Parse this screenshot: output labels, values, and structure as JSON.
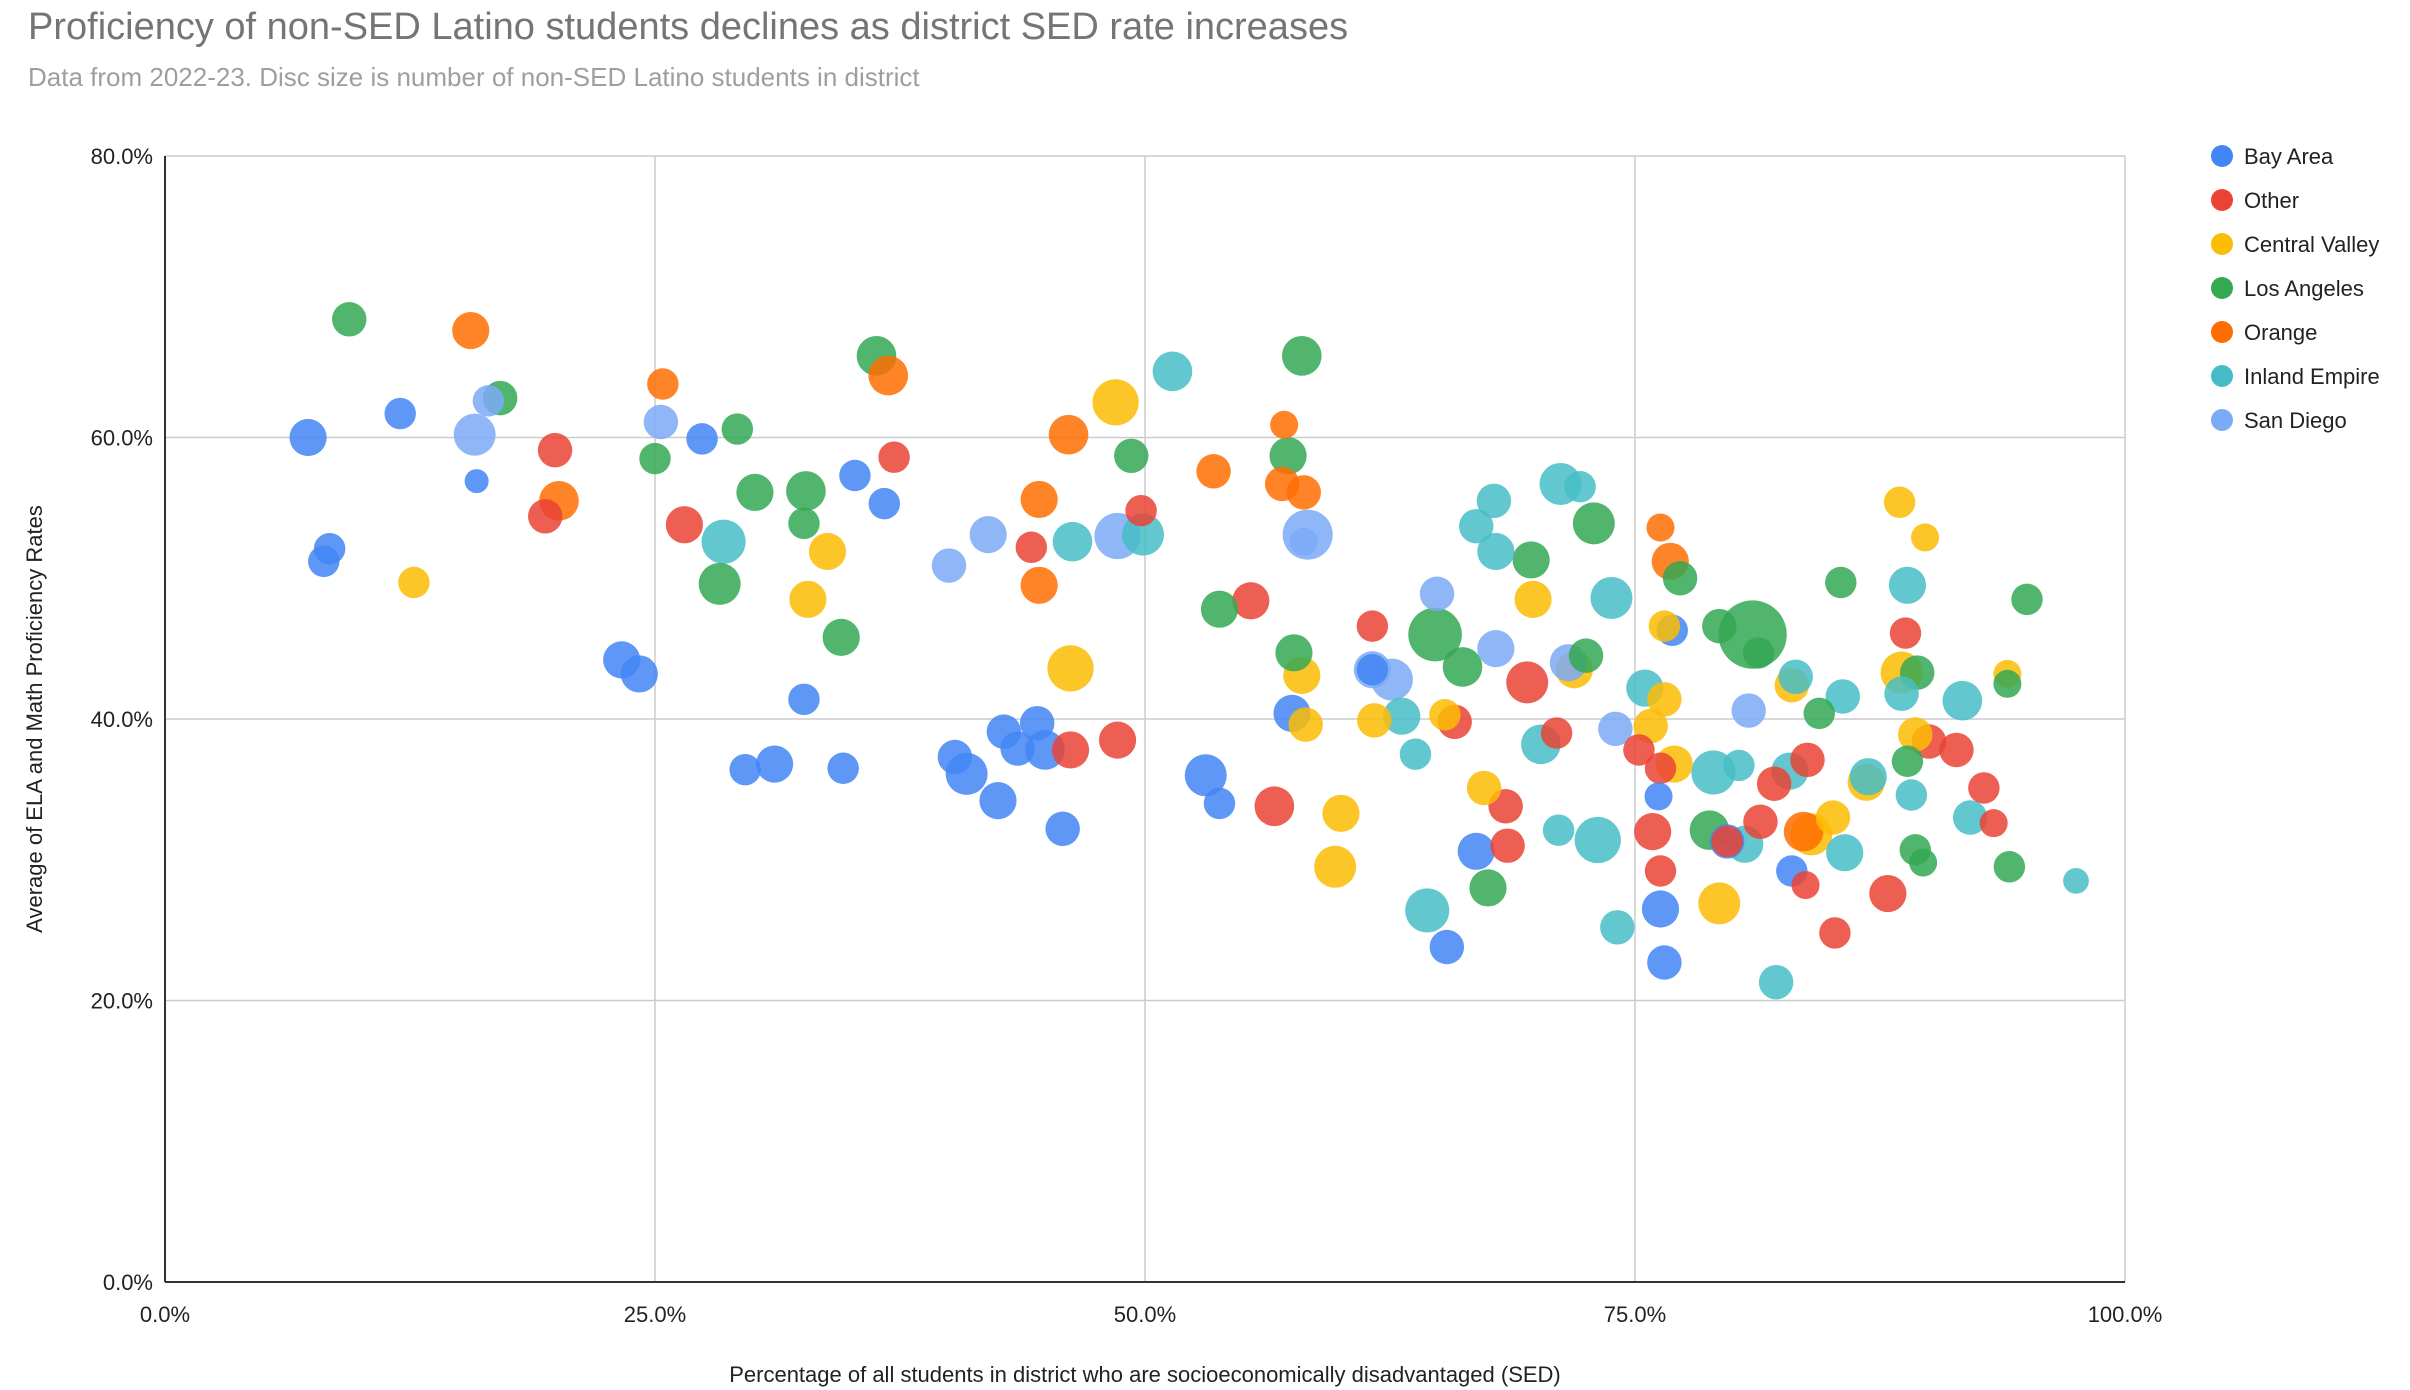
{
  "chart_data": {
    "type": "scatter",
    "title": "Proficiency of non-SED Latino students declines as district SED rate increases",
    "subtitle": "Data from 2022-23. Disc size is number of non-SED Latino students in district",
    "xlabel": "Percentage of all students in district who are socioeconomically disadvantaged (SED)",
    "ylabel": "Average of ELA and Math Proficiency Rates",
    "xlim": [
      0,
      100
    ],
    "ylim": [
      0,
      80
    ],
    "x_ticks": [
      "0.0%",
      "25.0%",
      "50.0%",
      "75.0%",
      "100.0%"
    ],
    "y_ticks": [
      "0.0%",
      "20.0%",
      "40.0%",
      "60.0%",
      "80.0%"
    ],
    "grid": true,
    "legend_position": "right",
    "size_encoding": "number of non-SED Latino students in district (relative)",
    "series": [
      {
        "name": "Bay Area",
        "color": "#4285F4",
        "points": [
          {
            "x": 7.3,
            "y": 60.0,
            "s": 3
          },
          {
            "x": 12.0,
            "y": 61.7,
            "s": 2
          },
          {
            "x": 8.4,
            "y": 52.1,
            "s": 2
          },
          {
            "x": 8.1,
            "y": 51.2,
            "s": 2
          },
          {
            "x": 15.9,
            "y": 56.9,
            "s": 1
          },
          {
            "x": 27.4,
            "y": 59.9,
            "s": 2
          },
          {
            "x": 35.2,
            "y": 57.3,
            "s": 2
          },
          {
            "x": 36.7,
            "y": 55.3,
            "s": 2
          },
          {
            "x": 23.3,
            "y": 44.2,
            "s": 3
          },
          {
            "x": 24.2,
            "y": 43.2,
            "s": 3
          },
          {
            "x": 32.6,
            "y": 41.4,
            "s": 2
          },
          {
            "x": 29.6,
            "y": 36.4,
            "s": 2
          },
          {
            "x": 31.1,
            "y": 36.8,
            "s": 3
          },
          {
            "x": 34.6,
            "y": 36.5,
            "s": 2
          },
          {
            "x": 40.3,
            "y": 37.3,
            "s": 2.5
          },
          {
            "x": 40.9,
            "y": 36.1,
            "s": 4
          },
          {
            "x": 42.5,
            "y": 34.2,
            "s": 3
          },
          {
            "x": 42.8,
            "y": 39.1,
            "s": 2.5
          },
          {
            "x": 43.5,
            "y": 37.9,
            "s": 2.5
          },
          {
            "x": 44.5,
            "y": 39.7,
            "s": 2.5
          },
          {
            "x": 44.9,
            "y": 37.8,
            "s": 3.5
          },
          {
            "x": 45.8,
            "y": 32.2,
            "s": 2.5
          },
          {
            "x": 53.1,
            "y": 36.0,
            "s": 4
          },
          {
            "x": 53.8,
            "y": 34.0,
            "s": 2
          },
          {
            "x": 57.5,
            "y": 40.4,
            "s": 3
          },
          {
            "x": 61.6,
            "y": 43.5,
            "s": 2
          },
          {
            "x": 65.4,
            "y": 23.8,
            "s": 2.5
          },
          {
            "x": 66.9,
            "y": 30.6,
            "s": 3
          },
          {
            "x": 76.2,
            "y": 34.5,
            "s": 1.5
          },
          {
            "x": 76.3,
            "y": 26.5,
            "s": 3
          },
          {
            "x": 76.5,
            "y": 22.7,
            "s": 2.5
          },
          {
            "x": 79.7,
            "y": 31.3,
            "s": 2.5
          },
          {
            "x": 83.0,
            "y": 29.2,
            "s": 2
          },
          {
            "x": 76.9,
            "y": 46.3,
            "s": 2
          }
        ]
      },
      {
        "name": "Other",
        "color": "#EA4335",
        "points": [
          {
            "x": 19.9,
            "y": 59.1,
            "s": 2.5
          },
          {
            "x": 19.4,
            "y": 54.4,
            "s": 2.5
          },
          {
            "x": 26.5,
            "y": 53.8,
            "s": 3
          },
          {
            "x": 37.2,
            "y": 58.6,
            "s": 2
          },
          {
            "x": 44.2,
            "y": 52.2,
            "s": 2
          },
          {
            "x": 46.2,
            "y": 37.8,
            "s": 3
          },
          {
            "x": 48.6,
            "y": 38.5,
            "s": 3
          },
          {
            "x": 49.8,
            "y": 54.8,
            "s": 2
          },
          {
            "x": 55.4,
            "y": 48.4,
            "s": 3
          },
          {
            "x": 56.6,
            "y": 33.8,
            "s": 3.5
          },
          {
            "x": 61.6,
            "y": 46.6,
            "s": 2
          },
          {
            "x": 65.8,
            "y": 39.8,
            "s": 2.5
          },
          {
            "x": 68.4,
            "y": 33.8,
            "s": 2.5
          },
          {
            "x": 68.5,
            "y": 31.0,
            "s": 2.5
          },
          {
            "x": 69.5,
            "y": 42.6,
            "s": 4
          },
          {
            "x": 71.0,
            "y": 39.0,
            "s": 2
          },
          {
            "x": 75.2,
            "y": 37.8,
            "s": 2
          },
          {
            "x": 75.9,
            "y": 32.0,
            "s": 3
          },
          {
            "x": 76.3,
            "y": 36.5,
            "s": 2
          },
          {
            "x": 76.3,
            "y": 29.2,
            "s": 2
          },
          {
            "x": 79.7,
            "y": 31.3,
            "s": 2
          },
          {
            "x": 81.4,
            "y": 32.7,
            "s": 2.5
          },
          {
            "x": 82.1,
            "y": 35.4,
            "s": 2.5
          },
          {
            "x": 83.7,
            "y": 28.2,
            "s": 1.5
          },
          {
            "x": 83.8,
            "y": 37.1,
            "s": 2.5
          },
          {
            "x": 85.2,
            "y": 24.8,
            "s": 2
          },
          {
            "x": 87.9,
            "y": 27.6,
            "s": 3
          },
          {
            "x": 88.8,
            "y": 46.1,
            "s": 2
          },
          {
            "x": 90.0,
            "y": 38.4,
            "s": 2.5
          },
          {
            "x": 91.4,
            "y": 37.8,
            "s": 2.5
          },
          {
            "x": 92.8,
            "y": 35.1,
            "s": 2
          },
          {
            "x": 93.3,
            "y": 32.6,
            "s": 1.5
          }
        ]
      },
      {
        "name": "Central Valley",
        "color": "#FBBC04",
        "points": [
          {
            "x": 12.7,
            "y": 49.7,
            "s": 2
          },
          {
            "x": 32.8,
            "y": 48.5,
            "s": 3
          },
          {
            "x": 33.8,
            "y": 51.9,
            "s": 3
          },
          {
            "x": 46.2,
            "y": 43.6,
            "s": 5
          },
          {
            "x": 48.5,
            "y": 62.5,
            "s": 5
          },
          {
            "x": 58.0,
            "y": 43.1,
            "s": 3
          },
          {
            "x": 58.2,
            "y": 39.6,
            "s": 2.5
          },
          {
            "x": 59.7,
            "y": 29.5,
            "s": 4
          },
          {
            "x": 60.0,
            "y": 33.3,
            "s": 3
          },
          {
            "x": 61.7,
            "y": 39.9,
            "s": 2.5
          },
          {
            "x": 65.3,
            "y": 40.3,
            "s": 2
          },
          {
            "x": 67.3,
            "y": 35.1,
            "s": 2.5
          },
          {
            "x": 69.8,
            "y": 48.5,
            "s": 3
          },
          {
            "x": 71.9,
            "y": 43.5,
            "s": 3
          },
          {
            "x": 75.8,
            "y": 39.5,
            "s": 2.5
          },
          {
            "x": 76.5,
            "y": 41.4,
            "s": 2.5
          },
          {
            "x": 77.0,
            "y": 36.8,
            "s": 3
          },
          {
            "x": 79.3,
            "y": 26.9,
            "s": 4
          },
          {
            "x": 83.0,
            "y": 42.4,
            "s": 2.5
          },
          {
            "x": 84.0,
            "y": 31.8,
            "s": 4
          },
          {
            "x": 85.1,
            "y": 33.0,
            "s": 2.5
          },
          {
            "x": 86.8,
            "y": 35.5,
            "s": 3
          },
          {
            "x": 88.5,
            "y": 55.4,
            "s": 2
          },
          {
            "x": 88.6,
            "y": 43.3,
            "s": 4
          },
          {
            "x": 89.3,
            "y": 38.9,
            "s": 2.5
          },
          {
            "x": 89.8,
            "y": 52.9,
            "s": 1.5
          },
          {
            "x": 94.0,
            "y": 43.2,
            "s": 1.5
          },
          {
            "x": 76.5,
            "y": 46.6,
            "s": 2
          }
        ]
      },
      {
        "name": "Los Angeles",
        "color": "#34A853",
        "points": [
          {
            "x": 9.4,
            "y": 68.4,
            "s": 2.5
          },
          {
            "x": 17.1,
            "y": 62.8,
            "s": 2.5
          },
          {
            "x": 25.0,
            "y": 58.5,
            "s": 2
          },
          {
            "x": 29.2,
            "y": 60.6,
            "s": 2
          },
          {
            "x": 28.3,
            "y": 49.6,
            "s": 4
          },
          {
            "x": 30.1,
            "y": 56.1,
            "s": 3
          },
          {
            "x": 32.7,
            "y": 56.2,
            "s": 3.5
          },
          {
            "x": 32.6,
            "y": 53.9,
            "s": 2
          },
          {
            "x": 34.5,
            "y": 45.8,
            "s": 3
          },
          {
            "x": 36.3,
            "y": 65.8,
            "s": 3.5
          },
          {
            "x": 49.3,
            "y": 58.7,
            "s": 2.5
          },
          {
            "x": 53.8,
            "y": 47.8,
            "s": 3
          },
          {
            "x": 57.3,
            "y": 58.7,
            "s": 3
          },
          {
            "x": 57.6,
            "y": 44.7,
            "s": 3
          },
          {
            "x": 58.0,
            "y": 65.8,
            "s": 3.5
          },
          {
            "x": 64.8,
            "y": 46.0,
            "s": 7
          },
          {
            "x": 66.2,
            "y": 43.7,
            "s": 3.5
          },
          {
            "x": 67.5,
            "y": 28.0,
            "s": 3
          },
          {
            "x": 69.7,
            "y": 51.3,
            "s": 3
          },
          {
            "x": 72.5,
            "y": 44.5,
            "s": 2.5
          },
          {
            "x": 72.9,
            "y": 53.9,
            "s": 4
          },
          {
            "x": 77.3,
            "y": 50.0,
            "s": 2.5
          },
          {
            "x": 78.8,
            "y": 32.1,
            "s": 3.5
          },
          {
            "x": 79.3,
            "y": 46.6,
            "s": 2.5
          },
          {
            "x": 81.0,
            "y": 46.0,
            "s": 12
          },
          {
            "x": 81.3,
            "y": 44.7,
            "s": 2
          },
          {
            "x": 84.4,
            "y": 40.4,
            "s": 2
          },
          {
            "x": 85.5,
            "y": 49.7,
            "s": 2
          },
          {
            "x": 88.9,
            "y": 37.0,
            "s": 2
          },
          {
            "x": 89.4,
            "y": 43.3,
            "s": 2.5
          },
          {
            "x": 89.3,
            "y": 30.7,
            "s": 2
          },
          {
            "x": 89.7,
            "y": 29.8,
            "s": 1.5
          },
          {
            "x": 94.0,
            "y": 42.5,
            "s": 1.5
          },
          {
            "x": 94.1,
            "y": 29.5,
            "s": 2
          },
          {
            "x": 95.0,
            "y": 48.5,
            "s": 2
          }
        ]
      },
      {
        "name": "Orange",
        "color": "#FF6D01",
        "points": [
          {
            "x": 15.6,
            "y": 67.6,
            "s": 3
          },
          {
            "x": 20.1,
            "y": 55.5,
            "s": 3.5
          },
          {
            "x": 25.4,
            "y": 63.8,
            "s": 2
          },
          {
            "x": 36.9,
            "y": 64.4,
            "s": 3.5
          },
          {
            "x": 44.6,
            "y": 55.6,
            "s": 3
          },
          {
            "x": 44.6,
            "y": 49.5,
            "s": 3
          },
          {
            "x": 46.1,
            "y": 60.2,
            "s": 3.5
          },
          {
            "x": 53.5,
            "y": 57.6,
            "s": 2.5
          },
          {
            "x": 57.1,
            "y": 60.9,
            "s": 1.5
          },
          {
            "x": 57.0,
            "y": 56.7,
            "s": 2.5
          },
          {
            "x": 58.1,
            "y": 56.1,
            "s": 2.5
          },
          {
            "x": 76.3,
            "y": 53.6,
            "s": 1.5
          },
          {
            "x": 76.8,
            "y": 51.2,
            "s": 3
          },
          {
            "x": 83.6,
            "y": 32.0,
            "s": 3.5
          }
        ]
      },
      {
        "name": "Inland Empire",
        "color": "#46BDC6",
        "points": [
          {
            "x": 28.5,
            "y": 52.6,
            "s": 4.5
          },
          {
            "x": 46.3,
            "y": 52.6,
            "s": 3.5
          },
          {
            "x": 49.9,
            "y": 53.1,
            "s": 4
          },
          {
            "x": 51.4,
            "y": 64.7,
            "s": 3.5
          },
          {
            "x": 63.1,
            "y": 40.2,
            "s": 3
          },
          {
            "x": 63.8,
            "y": 37.5,
            "s": 2
          },
          {
            "x": 64.4,
            "y": 26.4,
            "s": 4.5
          },
          {
            "x": 66.9,
            "y": 53.7,
            "s": 2.5
          },
          {
            "x": 67.8,
            "y": 55.5,
            "s": 2.5
          },
          {
            "x": 67.9,
            "y": 51.9,
            "s": 3
          },
          {
            "x": 70.2,
            "y": 38.2,
            "s": 3.5
          },
          {
            "x": 71.1,
            "y": 32.1,
            "s": 2
          },
          {
            "x": 71.2,
            "y": 56.7,
            "s": 4
          },
          {
            "x": 72.2,
            "y": 56.5,
            "s": 2
          },
          {
            "x": 73.1,
            "y": 31.4,
            "s": 5
          },
          {
            "x": 73.8,
            "y": 48.6,
            "s": 4
          },
          {
            "x": 74.1,
            "y": 25.2,
            "s": 2.5
          },
          {
            "x": 75.5,
            "y": 42.2,
            "s": 3
          },
          {
            "x": 79.0,
            "y": 36.2,
            "s": 4.5
          },
          {
            "x": 80.3,
            "y": 36.7,
            "s": 2
          },
          {
            "x": 80.6,
            "y": 31.1,
            "s": 3
          },
          {
            "x": 82.2,
            "y": 21.3,
            "s": 2.5
          },
          {
            "x": 82.9,
            "y": 36.3,
            "s": 3
          },
          {
            "x": 83.2,
            "y": 43.0,
            "s": 2.5
          },
          {
            "x": 85.6,
            "y": 41.6,
            "s": 2.5
          },
          {
            "x": 85.7,
            "y": 30.5,
            "s": 3
          },
          {
            "x": 86.9,
            "y": 35.9,
            "s": 3
          },
          {
            "x": 88.6,
            "y": 41.8,
            "s": 2.5
          },
          {
            "x": 88.9,
            "y": 49.5,
            "s": 3
          },
          {
            "x": 89.1,
            "y": 34.6,
            "s": 2
          },
          {
            "x": 91.7,
            "y": 41.3,
            "s": 3.5
          },
          {
            "x": 92.1,
            "y": 33.0,
            "s": 2.5
          },
          {
            "x": 97.5,
            "y": 28.5,
            "s": 1.2
          }
        ]
      },
      {
        "name": "San Diego",
        "color": "#7BAAF7",
        "points": [
          {
            "x": 15.8,
            "y": 60.2,
            "s": 4
          },
          {
            "x": 16.5,
            "y": 62.6,
            "s": 2
          },
          {
            "x": 25.3,
            "y": 61.1,
            "s": 2.5
          },
          {
            "x": 40.0,
            "y": 50.9,
            "s": 2.5
          },
          {
            "x": 42.0,
            "y": 53.1,
            "s": 3
          },
          {
            "x": 48.6,
            "y": 53.0,
            "s": 5
          },
          {
            "x": 58.3,
            "y": 53.1,
            "s": 6
          },
          {
            "x": 58.1,
            "y": 52.6,
            "s": 1.5
          },
          {
            "x": 61.6,
            "y": 43.5,
            "s": 3
          },
          {
            "x": 62.6,
            "y": 42.8,
            "s": 4
          },
          {
            "x": 64.9,
            "y": 48.9,
            "s": 2.5
          },
          {
            "x": 67.9,
            "y": 45.0,
            "s": 3
          },
          {
            "x": 71.6,
            "y": 44.0,
            "s": 3
          },
          {
            "x": 74.0,
            "y": 39.3,
            "s": 2.5
          },
          {
            "x": 80.8,
            "y": 40.6,
            "s": 2.5
          }
        ]
      }
    ]
  }
}
